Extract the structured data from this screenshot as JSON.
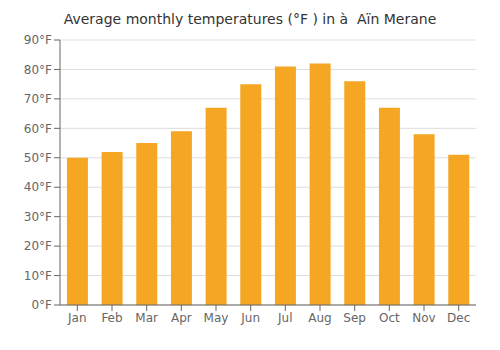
{
  "chart_data": {
    "type": "bar",
    "title": "Average monthly temperatures (°F ) in à  Aïn Merane",
    "categories": [
      "Jan",
      "Feb",
      "Mar",
      "Apr",
      "May",
      "Jun",
      "Jul",
      "Aug",
      "Sep",
      "Oct",
      "Nov",
      "Dec"
    ],
    "values": [
      50,
      52,
      55,
      59,
      67,
      75,
      81,
      82,
      76,
      67,
      58,
      51
    ],
    "color": "#F5A623",
    "ylim": [
      0,
      90
    ],
    "yticks": [
      {
        "value": 0,
        "label": "0°F"
      },
      {
        "value": 10,
        "label": "10°F"
      },
      {
        "value": 20,
        "label": "20°F"
      },
      {
        "value": 30,
        "label": "30°F"
      },
      {
        "value": 40,
        "label": "40°F"
      },
      {
        "value": 50,
        "label": "50°F"
      },
      {
        "value": 60,
        "label": "60°F"
      },
      {
        "value": 70,
        "label": "70°F"
      },
      {
        "value": 80,
        "label": "80°F"
      },
      {
        "value": 90,
        "label": "90°F"
      }
    ],
    "grid": true
  }
}
